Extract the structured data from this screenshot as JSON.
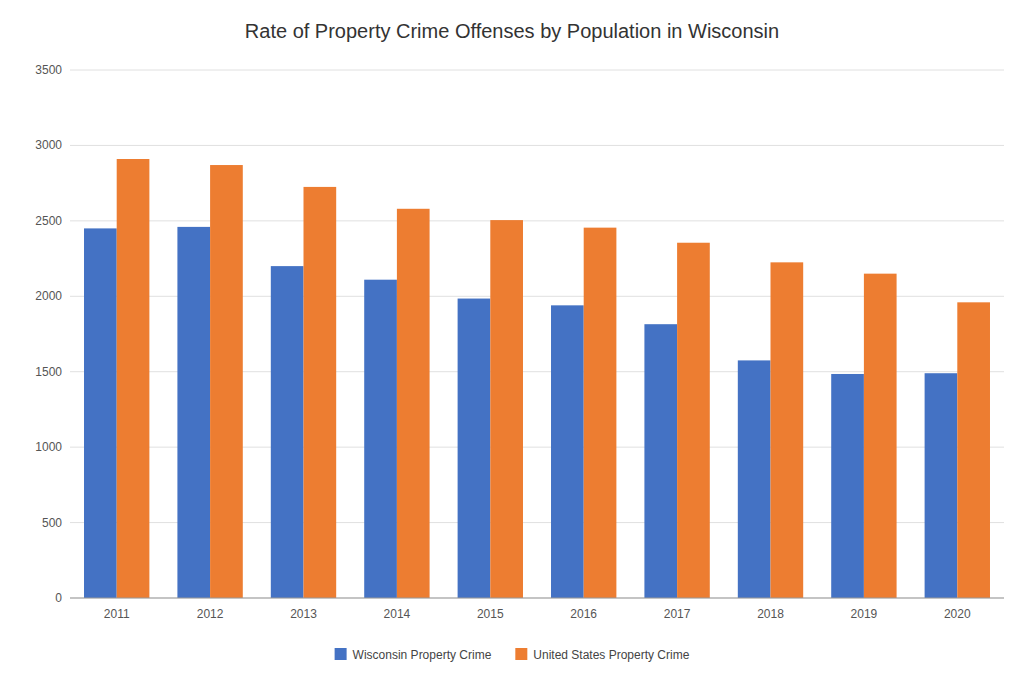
{
  "chart_data": {
    "type": "bar",
    "title": "Rate of Property Crime Offenses by Population in Wisconsin",
    "categories": [
      "2011",
      "2012",
      "2013",
      "2014",
      "2015",
      "2016",
      "2017",
      "2018",
      "2019",
      "2020"
    ],
    "series": [
      {
        "name": "Wisconsin Property Crime",
        "color": "#4472C4",
        "values": [
          2450,
          2460,
          2200,
          2110,
          1985,
          1940,
          1815,
          1575,
          1485,
          1490
        ]
      },
      {
        "name": "United States Property Crime",
        "color": "#ED7D31",
        "values": [
          2910,
          2870,
          2725,
          2580,
          2505,
          2455,
          2355,
          2225,
          2150,
          1960
        ]
      }
    ],
    "ylim": [
      0,
      3500
    ],
    "yticks": [
      0,
      500,
      1000,
      1500,
      2000,
      2500,
      3000,
      3500
    ],
    "grid": true,
    "legend": "bottom"
  }
}
